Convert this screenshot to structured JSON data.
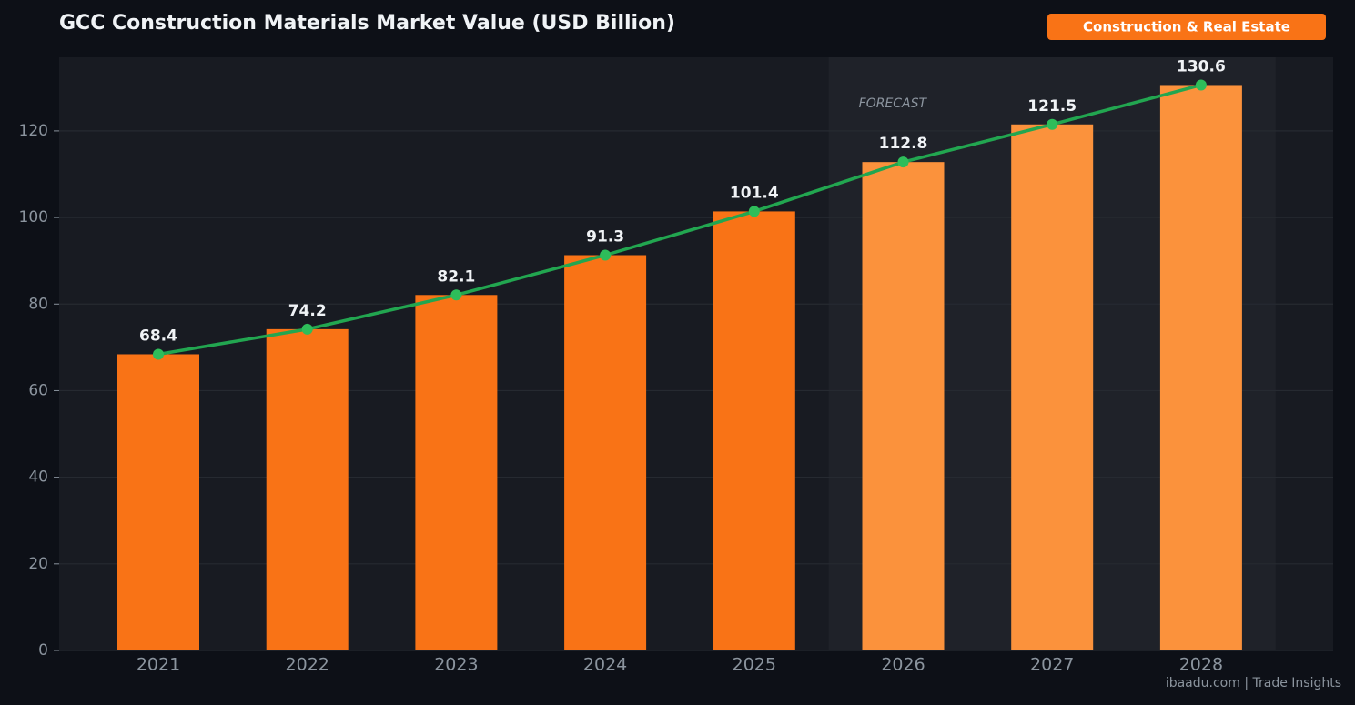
{
  "badge": "Construction & Real Estate",
  "footer": "ibaadu.com | Trade Insights",
  "chart_data": {
    "type": "bar",
    "title": "GCC Construction Materials Market Value (USD Billion)",
    "annotation": "FORECAST",
    "categories": [
      "2021",
      "2022",
      "2023",
      "2024",
      "2025",
      "2026",
      "2027",
      "2028"
    ],
    "values": [
      68.4,
      74.2,
      82.1,
      91.3,
      101.4,
      112.8,
      121.5,
      130.6
    ],
    "colors": [
      "#f97316",
      "#f97316",
      "#f97316",
      "#f97316",
      "#f97316",
      "#fb923c",
      "#fb923c",
      "#fb923c"
    ],
    "line_color": "#22a650",
    "marker_color": "#2ebd5a",
    "ylim": [
      0,
      137
    ],
    "yticks": [
      0,
      20,
      40,
      60,
      80,
      100,
      120
    ],
    "grid": true
  }
}
